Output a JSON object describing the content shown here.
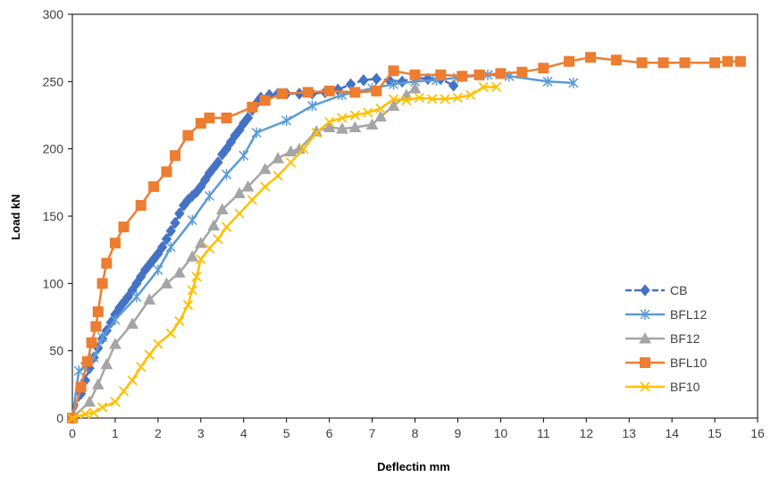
{
  "chart_data": {
    "type": "line",
    "title": "",
    "xlabel": "Deflectin mm",
    "ylabel": "Load kN",
    "xlim": [
      0,
      16
    ],
    "ylim": [
      0,
      300
    ],
    "x_ticks": [
      0,
      1,
      2,
      3,
      4,
      5,
      6,
      7,
      8,
      9,
      10,
      11,
      12,
      13,
      14,
      15,
      16
    ],
    "y_ticks": [
      0,
      50,
      100,
      150,
      200,
      250,
      300
    ],
    "grid": false,
    "legend_position": "right",
    "series": [
      {
        "name": "CB",
        "color": "#4472C4",
        "marker": "diamond",
        "dashed": true,
        "x": [
          0,
          0.2,
          0.3,
          0.4,
          0.5,
          0.6,
          0.7,
          0.8,
          0.9,
          1.0,
          1.1,
          1.2,
          1.3,
          1.4,
          1.5,
          1.6,
          1.7,
          1.8,
          1.9,
          2.0,
          2.1,
          2.2,
          2.3,
          2.4,
          2.5,
          2.6,
          2.7,
          2.8,
          2.9,
          3.0,
          3.1,
          3.2,
          3.3,
          3.4,
          3.5,
          3.6,
          3.7,
          3.8,
          3.9,
          4.0,
          4.1,
          4.2,
          4.3,
          4.4,
          4.6,
          4.8,
          5.0,
          5.3,
          5.6,
          5.9,
          6.2,
          6.5,
          6.8,
          7.1,
          7.4,
          7.7,
          8.0,
          8.3,
          8.6,
          8.9
        ],
        "values": [
          0,
          18,
          28,
          37,
          45,
          52,
          59,
          65,
          71,
          77,
          82,
          86,
          90,
          95,
          100,
          105,
          110,
          114,
          118,
          122,
          127,
          133,
          139,
          145,
          152,
          158,
          162,
          165,
          168,
          172,
          177,
          182,
          186,
          190,
          196,
          200,
          205,
          210,
          214,
          219,
          223,
          229,
          234,
          238,
          240,
          241,
          241,
          241,
          241,
          242,
          244,
          248,
          251,
          252,
          251,
          250,
          253,
          252,
          252,
          247
        ]
      },
      {
        "name": "BFL12",
        "color": "#5B9BD5",
        "marker": "star",
        "dashed": false,
        "x": [
          0,
          0.15,
          0.3,
          0.5,
          0.7,
          1.0,
          1.5,
          2.0,
          2.3,
          2.8,
          3.2,
          3.6,
          4.0,
          4.3,
          5.0,
          5.6,
          6.3,
          7.0,
          7.5,
          8.0,
          8.5,
          9.0,
          9.7,
          10.2,
          11.1,
          11.7
        ],
        "values": [
          0,
          35,
          38,
          45,
          60,
          73,
          90,
          110,
          127,
          147,
          165,
          181,
          195,
          212,
          221,
          232,
          240,
          245,
          248,
          250,
          251,
          253,
          255,
          254,
          250,
          249
        ]
      },
      {
        "name": "BF12",
        "color": "#A5A5A5",
        "marker": "triangle",
        "dashed": false,
        "x": [
          0,
          0.4,
          0.6,
          0.8,
          1.0,
          1.4,
          1.8,
          2.2,
          2.5,
          2.8,
          3.0,
          3.3,
          3.5,
          3.9,
          4.1,
          4.5,
          4.8,
          5.1,
          5.3,
          5.7,
          6.0,
          6.3,
          6.6,
          7.0,
          7.2,
          7.5,
          7.8,
          8.0
        ],
        "values": [
          0,
          12,
          25,
          40,
          55,
          70,
          88,
          100,
          108,
          120,
          130,
          143,
          155,
          167,
          172,
          185,
          193,
          198,
          200,
          213,
          216,
          215,
          216,
          218,
          224,
          232,
          240,
          245
        ]
      },
      {
        "name": "BFL10",
        "color": "#ED7D31",
        "marker": "square",
        "dashed": false,
        "x": [
          0,
          0.2,
          0.35,
          0.45,
          0.55,
          0.6,
          0.7,
          0.8,
          1.0,
          1.2,
          1.6,
          1.9,
          2.2,
          2.4,
          2.7,
          3.0,
          3.2,
          3.6,
          4.2,
          4.5,
          4.9,
          5.5,
          6.0,
          6.6,
          7.1,
          7.5,
          8.0,
          8.6,
          9.1,
          9.5,
          10.0,
          10.5,
          11.0,
          11.6,
          12.1,
          12.7,
          13.3,
          13.8,
          14.3,
          15.0,
          15.3,
          15.6
        ],
        "values": [
          0,
          23,
          42,
          56,
          68,
          79,
          100,
          115,
          130,
          142,
          158,
          172,
          183,
          195,
          210,
          219,
          223,
          223,
          231,
          236,
          241,
          242,
          243,
          242,
          243,
          258,
          255,
          255,
          254,
          255,
          256,
          257,
          260,
          265,
          268,
          266,
          264,
          264,
          264,
          264,
          265,
          265
        ]
      },
      {
        "name": "BF10",
        "color": "#FFC000",
        "marker": "x",
        "dashed": false,
        "x": [
          0,
          0.3,
          0.5,
          0.7,
          1.0,
          1.2,
          1.4,
          1.6,
          1.8,
          2.0,
          2.3,
          2.5,
          2.7,
          2.8,
          2.9,
          3.0,
          3.2,
          3.4,
          3.6,
          3.9,
          4.2,
          4.5,
          4.8,
          5.1,
          5.4,
          5.7,
          6.0,
          6.3,
          6.6,
          6.9,
          7.2,
          7.5,
          7.8,
          8.1,
          8.4,
          8.7,
          9.0,
          9.3,
          9.6,
          9.9
        ],
        "values": [
          0,
          3,
          4,
          8,
          12,
          20,
          28,
          38,
          47,
          55,
          63,
          72,
          84,
          95,
          105,
          118,
          126,
          133,
          142,
          152,
          162,
          172,
          180,
          190,
          200,
          212,
          220,
          223,
          225,
          227,
          230,
          237,
          236,
          238,
          237,
          237,
          238,
          240,
          246,
          246
        ]
      }
    ]
  }
}
